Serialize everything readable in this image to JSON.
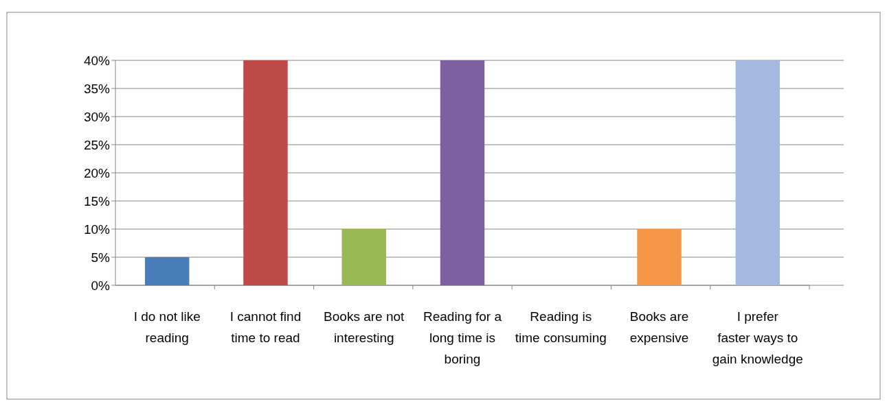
{
  "chart_data": {
    "type": "bar",
    "categories": [
      "I do not like reading",
      "I cannot find time to read",
      "Books are not interesting",
      "Reading for a long time is boring",
      "Reading is time consuming",
      "Books are expensive",
      "I prefer faster ways to gain knowledge"
    ],
    "values": [
      5,
      40,
      10,
      40,
      0,
      10,
      40
    ],
    "colors": [
      "#4a7ebb",
      "#be4b48",
      "#98b954",
      "#7d60a0",
      "#31859c",
      "#f79646",
      "#a5b9e0"
    ],
    "ylim": [
      0,
      40
    ],
    "yticks": [
      {
        "value": 0,
        "label": "0%"
      },
      {
        "value": 5,
        "label": "5%"
      },
      {
        "value": 10,
        "label": "10%"
      },
      {
        "value": 15,
        "label": "15%"
      },
      {
        "value": 20,
        "label": "20%"
      },
      {
        "value": 25,
        "label": "25%"
      },
      {
        "value": 30,
        "label": "30%"
      },
      {
        "value": 35,
        "label": "35%"
      },
      {
        "value": 40,
        "label": "40%"
      }
    ],
    "grid": "y"
  }
}
